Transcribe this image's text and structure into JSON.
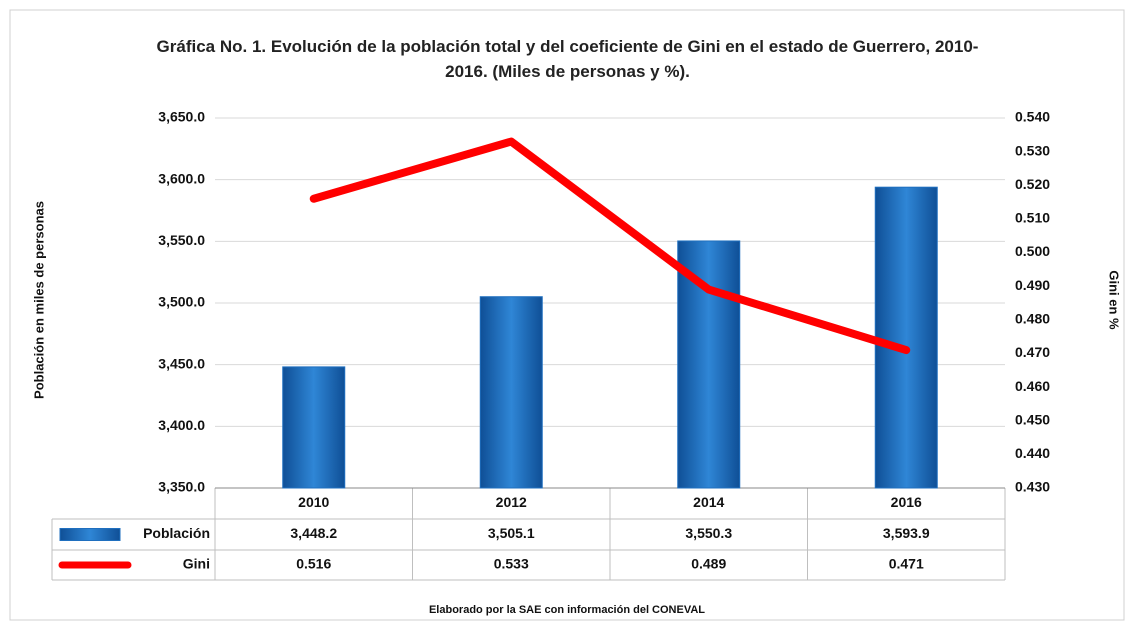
{
  "chart_data": {
    "type": "bar_line",
    "title": "Gráfica No. 1. Evolución de la población total y del coeficiente de Gini en el estado de Guerrero, 2010-2016. (Miles de personas y %).",
    "ylabel": "Población en miles de personas",
    "y2label": "Gini en %",
    "source": "Elaborado por la SAE con información del CONEVAL",
    "categories": [
      "2010",
      "2012",
      "2014",
      "2016"
    ],
    "series": [
      {
        "name": "Población",
        "type": "bar",
        "color": "#1f6fbf",
        "values": [
          3448.2,
          3505.1,
          3550.3,
          3593.9
        ],
        "value_labels": [
          "3,448.2",
          "3,505.1",
          "3,550.3",
          "3,593.9"
        ]
      },
      {
        "name": "Gini",
        "type": "line",
        "axis": "y2",
        "color": "#ff0000",
        "values": [
          0.516,
          0.533,
          0.489,
          0.471
        ]
      }
    ],
    "ylim": [
      3350,
      3650
    ],
    "yticks": [
      {
        "value": 3350,
        "label": "3,350.0"
      },
      {
        "value": 3400,
        "label": "3,400.0"
      },
      {
        "value": 3450,
        "label": "3,450.0"
      },
      {
        "value": 3500,
        "label": "3,500.0"
      },
      {
        "value": 3550,
        "label": "3,550.0"
      },
      {
        "value": 3600,
        "label": "3,600.0"
      },
      {
        "value": 3650,
        "label": "3,650.0"
      }
    ],
    "y2lim": [
      0.43,
      0.54
    ],
    "y2ticks": [
      {
        "value": 0.43,
        "label": "0.430"
      },
      {
        "value": 0.44,
        "label": "0.440"
      },
      {
        "value": 0.45,
        "label": "0.450"
      },
      {
        "value": 0.46,
        "label": "0.460"
      },
      {
        "value": 0.47,
        "label": "0.470"
      },
      {
        "value": 0.48,
        "label": "0.480"
      },
      {
        "value": 0.49,
        "label": "0.490"
      },
      {
        "value": 0.5,
        "label": "0.500"
      },
      {
        "value": 0.51,
        "label": "0.510"
      },
      {
        "value": 0.52,
        "label": "0.520"
      },
      {
        "value": 0.53,
        "label": "0.530"
      },
      {
        "value": 0.54,
        "label": "0.540"
      }
    ],
    "grid": true,
    "data_table": true
  }
}
